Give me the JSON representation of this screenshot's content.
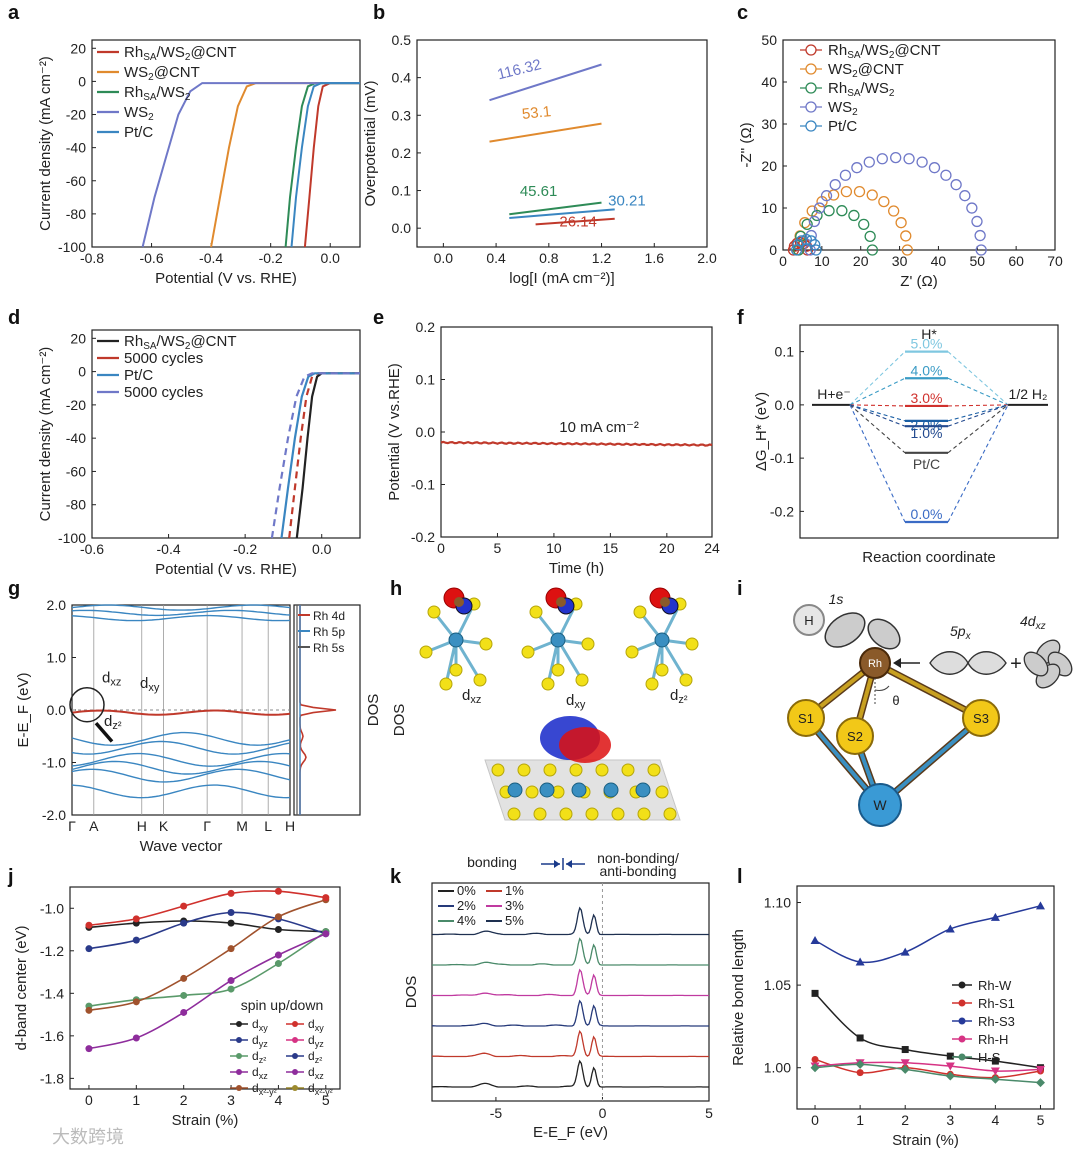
{
  "panel_letters": [
    "a",
    "b",
    "c",
    "d",
    "e",
    "f",
    "g",
    "h",
    "i",
    "j",
    "k",
    "l"
  ],
  "watermark": "大数跨境",
  "colors": {
    "rh_cnt": "#c0392b",
    "ws2_cnt": "#e08a2e",
    "rh_ws2": "#2e8b57",
    "ws2": "#6f78c8",
    "ptc": "#3a86c1",
    "black": "#222222",
    "teal": "#2d8f7b",
    "purple": "#8e2d9c",
    "pink": "#d63384",
    "brown": "#a0522d",
    "olive": "#9c8a2e",
    "navy": "#263a7a",
    "green": "#5a9a6a",
    "red": "#d0312d"
  },
  "chart_data": [
    {
      "id": "a",
      "type": "line",
      "xlabel": "Potential (V vs. RHE)",
      "ylabel": "Current density (mA cm⁻²)",
      "xlim": [
        -0.8,
        0.1
      ],
      "ylim": [
        -100,
        25
      ],
      "xticks": [
        -0.8,
        -0.6,
        -0.4,
        -0.2,
        0.0
      ],
      "xtick_labels": [
        "-0.8",
        "-0.6",
        "-0.4",
        "-0.2",
        "0.0"
      ],
      "yticks": [
        20,
        0,
        -20,
        -40,
        -60,
        -80,
        -100
      ],
      "ytick_labels": [
        "20",
        "0",
        "-20",
        "-40",
        "-60",
        "-80",
        "-100"
      ],
      "series": [
        {
          "name": "Rh_SA/WS2@CNT",
          "color": "#c0392b",
          "points": [
            [
              -0.085,
              -100
            ],
            [
              -0.07,
              -70
            ],
            [
              -0.055,
              -40
            ],
            [
              -0.04,
              -15
            ],
            [
              -0.025,
              -3
            ],
            [
              0.0,
              -1
            ],
            [
              0.1,
              -1
            ]
          ]
        },
        {
          "name": "WS2@CNT",
          "color": "#e08a2e",
          "points": [
            [
              -0.4,
              -100
            ],
            [
              -0.37,
              -70
            ],
            [
              -0.34,
              -40
            ],
            [
              -0.31,
              -15
            ],
            [
              -0.28,
              -3
            ],
            [
              -0.25,
              -1
            ],
            [
              0.1,
              -1
            ]
          ]
        },
        {
          "name": "Rh_SA/WS2",
          "color": "#2e8b57",
          "points": [
            [
              -0.15,
              -100
            ],
            [
              -0.135,
              -70
            ],
            [
              -0.115,
              -40
            ],
            [
              -0.095,
              -15
            ],
            [
              -0.075,
              -3
            ],
            [
              -0.05,
              -1
            ],
            [
              0.1,
              -1
            ]
          ]
        },
        {
          "name": "WS2",
          "color": "#6f78c8",
          "points": [
            [
              -0.63,
              -100
            ],
            [
              -0.59,
              -70
            ],
            [
              -0.55,
              -45
            ],
            [
              -0.51,
              -20
            ],
            [
              -0.47,
              -6
            ],
            [
              -0.43,
              -1
            ],
            [
              0.1,
              -1
            ]
          ]
        },
        {
          "name": "Pt/C",
          "color": "#3a86c1",
          "points": [
            [
              -0.13,
              -100
            ],
            [
              -0.115,
              -70
            ],
            [
              -0.095,
              -40
            ],
            [
              -0.075,
              -15
            ],
            [
              -0.055,
              -3
            ],
            [
              -0.03,
              -1
            ],
            [
              0.1,
              -1
            ]
          ]
        }
      ],
      "legend": [
        "Rh",
        "SA",
        "/WS",
        "2",
        "@CNT",
        "WS",
        "2",
        "@CNT",
        "Rh",
        "SA",
        "/WS",
        "2",
        "WS",
        "2",
        "Pt/C"
      ]
    },
    {
      "id": "b",
      "type": "line",
      "xlabel": "log[I (mA cm⁻²)]",
      "ylabel": "Overpotential (mV)",
      "xlim": [
        -0.2,
        2.0
      ],
      "ylim": [
        -0.05,
        0.5
      ],
      "xticks": [
        0.0,
        0.4,
        0.8,
        1.2,
        1.6,
        2.0
      ],
      "xtick_labels": [
        "0.0",
        "0.4",
        "0.8",
        "1.2",
        "1.6",
        "2.0"
      ],
      "yticks": [
        0.0,
        0.1,
        0.2,
        0.3,
        0.4,
        0.5
      ],
      "ytick_labels": [
        "0.0",
        "0.1",
        "0.2",
        "0.3",
        "0.4",
        "0.5"
      ],
      "series": [
        {
          "name": "WS2",
          "color": "#6f78c8",
          "x": [
            0.35,
            1.2
          ],
          "y": [
            0.34,
            0.435
          ],
          "label": "116.32"
        },
        {
          "name": "WS2@CNT",
          "color": "#e08a2e",
          "x": [
            0.35,
            1.2
          ],
          "y": [
            0.23,
            0.278
          ],
          "label": "53.1"
        },
        {
          "name": "Rh_SA/WS2",
          "color": "#2e8b57",
          "x": [
            0.5,
            1.2
          ],
          "y": [
            0.037,
            0.068
          ],
          "label": "45.61"
        },
        {
          "name": "Pt/C",
          "color": "#3a86c1",
          "x": [
            0.5,
            1.3
          ],
          "y": [
            0.027,
            0.05
          ],
          "label": "30.21"
        },
        {
          "name": "Rh_SA/WS2@CNT",
          "color": "#c0392b",
          "x": [
            0.7,
            1.3
          ],
          "y": [
            0.01,
            0.025
          ],
          "label": "26.14"
        }
      ]
    },
    {
      "id": "c",
      "type": "scatter",
      "xlabel": "Z' (Ω)",
      "ylabel": "-Z'' (Ω)",
      "xlim": [
        0,
        70
      ],
      "ylim": [
        0,
        50
      ],
      "xticks": [
        0,
        10,
        20,
        30,
        40,
        50,
        60,
        70
      ],
      "xtick_labels": [
        "0",
        "10",
        "20",
        "30",
        "40",
        "50",
        "60",
        "70"
      ],
      "yticks": [
        0,
        10,
        20,
        30,
        40,
        50
      ],
      "ytick_labels": [
        "0",
        "10",
        "20",
        "30",
        "40",
        "50"
      ],
      "series": [
        {
          "name": "Rh_SA/WS2@CNT",
          "color": "#c0392b",
          "center": 4.5,
          "radius": 1.8
        },
        {
          "name": "WS2@CNT",
          "color": "#e08a2e",
          "center": 18,
          "radius": 14
        },
        {
          "name": "Rh_SA/WS2",
          "color": "#2e8b57",
          "center": 13.5,
          "radius": 9.5
        },
        {
          "name": "WS2",
          "color": "#6f78c8",
          "center": 29,
          "radius": 22
        },
        {
          "name": "Pt/C",
          "color": "#3a86c1",
          "center": 6,
          "radius": 2.5
        }
      ]
    },
    {
      "id": "d",
      "type": "line",
      "xlabel": "Potential (V vs. RHE)",
      "ylabel": "Current density (mA cm⁻²)",
      "xlim": [
        -0.6,
        0.1
      ],
      "ylim": [
        -100,
        25
      ],
      "xticks": [
        -0.6,
        -0.4,
        -0.2,
        0.0
      ],
      "xtick_labels": [
        "-0.6",
        "-0.4",
        "-0.2",
        "0.0"
      ],
      "yticks": [
        20,
        0,
        -20,
        -40,
        -60,
        -80,
        -100
      ],
      "ytick_labels": [
        "20",
        "0",
        "-20",
        "-40",
        "-60",
        "-80",
        "-100"
      ],
      "series": [
        {
          "name": "Rh_SA/WS2@CNT",
          "color": "#222222",
          "dash": false,
          "points": [
            [
              -0.065,
              -100
            ],
            [
              -0.05,
              -70
            ],
            [
              -0.037,
              -40
            ],
            [
              -0.025,
              -15
            ],
            [
              -0.012,
              -3
            ],
            [
              0.0,
              -1
            ],
            [
              0.1,
              -1
            ]
          ]
        },
        {
          "name": "5000 cycles",
          "color": "#c0392b",
          "dash": true,
          "points": [
            [
              -0.085,
              -100
            ],
            [
              -0.07,
              -70
            ],
            [
              -0.055,
              -40
            ],
            [
              -0.04,
              -15
            ],
            [
              -0.025,
              -3
            ],
            [
              -0.01,
              -1
            ],
            [
              0.1,
              -1
            ]
          ]
        },
        {
          "name": "Pt/C",
          "color": "#3a86c1",
          "dash": false,
          "points": [
            [
              -0.105,
              -100
            ],
            [
              -0.088,
              -70
            ],
            [
              -0.07,
              -40
            ],
            [
              -0.052,
              -15
            ],
            [
              -0.035,
              -3
            ],
            [
              -0.018,
              -1
            ],
            [
              0.1,
              -1
            ]
          ]
        },
        {
          "name": "5000 cycles",
          "color": "#6f78c8",
          "dash": true,
          "points": [
            [
              -0.13,
              -100
            ],
            [
              -0.11,
              -70
            ],
            [
              -0.088,
              -40
            ],
            [
              -0.066,
              -15
            ],
            [
              -0.045,
              -3
            ],
            [
              -0.025,
              -1
            ],
            [
              0.1,
              -1
            ]
          ]
        }
      ]
    },
    {
      "id": "e",
      "type": "line",
      "xlabel": "Time (h)",
      "ylabel": "Potential (V vs.RHE)",
      "xlim": [
        0,
        24
      ],
      "ylim": [
        -0.2,
        0.2
      ],
      "xticks": [
        0,
        5,
        10,
        15,
        20,
        24
      ],
      "xtick_labels": [
        "0",
        "5",
        "10",
        "15",
        "20",
        "24"
      ],
      "yticks": [
        0.2,
        0.1,
        0.0,
        -0.1,
        -0.2
      ],
      "ytick_labels": [
        "0.2",
        "0.1",
        "0.0",
        "-0.1",
        "-0.2"
      ],
      "series": [
        {
          "name": "10 mA cm⁻²",
          "color": "#c0392b",
          "x": [
            0,
            24
          ],
          "y": [
            -0.02,
            -0.025
          ]
        }
      ],
      "annotation": "10 mA cm⁻²"
    },
    {
      "id": "f",
      "type": "energy_diagram",
      "xlabel": "Reaction coordinate",
      "ylabel": "ΔG_H* (eV)",
      "ylim": [
        -0.25,
        0.15
      ],
      "yticks": [
        0.1,
        0.0,
        -0.1,
        -0.2
      ],
      "ytick_labels": [
        "0.1",
        "0.0",
        "-0.1",
        "-0.2"
      ],
      "left_label": "H+e⁻",
      "right_label": "1/2 H₂",
      "top_label": "H*",
      "levels": [
        {
          "label": "5.0%",
          "value": 0.1,
          "color": "#7fc7e0"
        },
        {
          "label": "4.0%",
          "value": 0.05,
          "color": "#3a9bc5"
        },
        {
          "label": "3.0%",
          "value": -0.002,
          "color": "#d0312d"
        },
        {
          "label": "2.0%",
          "value": -0.03,
          "color": "#1a5fa5"
        },
        {
          "label": "1.0%",
          "value": -0.04,
          "color": "#234a8f"
        },
        {
          "label": "Pt/C",
          "value": -0.09,
          "color": "#444444"
        },
        {
          "label": "0.0%",
          "value": -0.22,
          "color": "#3a6bc5"
        }
      ]
    },
    {
      "id": "g",
      "type": "band_structure",
      "xlabel": "Wave vector",
      "ylabel": "E-E_F (eV)",
      "ylim": [
        -2.0,
        2.0
      ],
      "yticks": [
        2.0,
        1.0,
        0.0,
        -1.0,
        -2.0
      ],
      "ytick_labels": [
        "2.0",
        "1.0",
        "0.0",
        "-1.0",
        "-2.0"
      ],
      "kpoints": [
        "Γ",
        "A",
        "H",
        "K",
        "Γ",
        "M",
        "L",
        "H"
      ],
      "orbital_labels": [
        "d",
        "xz",
        "d",
        "xy",
        "d",
        "z²"
      ],
      "dos_legend": [
        "Rh 4d",
        "Rh 5p",
        "Rh 5s"
      ],
      "dos_label": "DOS"
    },
    {
      "id": "j",
      "type": "line",
      "xlabel": "Strain (%)",
      "ylabel": "d-band center (eV)",
      "xlim": [
        -0.4,
        5.3
      ],
      "ylim": [
        -1.85,
        -0.9
      ],
      "xticks": [
        0,
        1,
        2,
        3,
        4,
        5
      ],
      "xtick_labels": [
        "0",
        "1",
        "2",
        "3",
        "4",
        "5"
      ],
      "yticks": [
        -1.0,
        -1.2,
        -1.4,
        -1.6,
        -1.8
      ],
      "ytick_labels": [
        "-1.0",
        "-1.2",
        "-1.4",
        "-1.6",
        "-1.8"
      ],
      "x": [
        0,
        1,
        2,
        3,
        4,
        5
      ],
      "series": [
        {
          "name": "d_xy",
          "color": "#222222",
          "values": [
            -1.09,
            -1.07,
            -1.06,
            -1.07,
            -1.1,
            -1.11
          ]
        },
        {
          "name": "d_yz",
          "color": "#2a3a8a",
          "values": [
            -1.19,
            -1.15,
            -1.07,
            -1.02,
            -1.05,
            -1.12
          ]
        },
        {
          "name": "d_z²",
          "color": "#5a9a6a",
          "values": [
            -1.46,
            -1.43,
            -1.41,
            -1.38,
            -1.26,
            -1.11
          ]
        },
        {
          "name": "d_xz",
          "color": "#8e2d9c",
          "values": [
            -1.66,
            -1.61,
            -1.49,
            -1.34,
            -1.22,
            -1.12
          ]
        },
        {
          "name": "d_x²-y²",
          "color": "#a0522d",
          "values": [
            -1.48,
            -1.44,
            -1.33,
            -1.19,
            -1.04,
            -0.96
          ]
        },
        {
          "name": "d_xy(dn)",
          "color": "#d0312d",
          "values": [
            -1.08,
            -1.05,
            -0.99,
            -0.93,
            -0.92,
            -0.95
          ]
        }
      ],
      "legend_title": "spin up/down",
      "legend_entries": [
        "d",
        "xy",
        "d",
        "xy",
        "d",
        "yz",
        "d",
        "yz",
        "d",
        "z²",
        "d",
        "z²",
        "d",
        "xz",
        "d",
        "xz",
        "d",
        "x²-y²",
        "d",
        "x²-y²"
      ]
    },
    {
      "id": "k",
      "type": "line",
      "xlabel": "E-E_F (eV)",
      "ylabel": "DOS",
      "xlim": [
        -8,
        5
      ],
      "xticks": [
        -5,
        0,
        5
      ],
      "xtick_labels": [
        "-5",
        "0",
        "5"
      ],
      "series": [
        {
          "name": "0%",
          "color": "#222222"
        },
        {
          "name": "1%",
          "color": "#c0392b"
        },
        {
          "name": "2%",
          "color": "#263a7a"
        },
        {
          "name": "3%",
          "color": "#c03aa0"
        },
        {
          "name": "4%",
          "color": "#4a8a6a"
        },
        {
          "name": "5%",
          "color": "#1e3050"
        }
      ],
      "annotations": [
        "bonding",
        "non-bonding/",
        "anti-bonding"
      ]
    },
    {
      "id": "l",
      "type": "line",
      "xlabel": "Strain (%)",
      "ylabel": "Relative bond length",
      "xlim": [
        -0.4,
        5.3
      ],
      "ylim": [
        0.975,
        1.11
      ],
      "xticks": [
        0,
        1,
        2,
        3,
        4,
        5
      ],
      "xtick_labels": [
        "0",
        "1",
        "2",
        "3",
        "4",
        "5"
      ],
      "yticks": [
        1.1,
        1.05,
        1.0
      ],
      "ytick_labels": [
        "1.10",
        "1.05",
        "1.00"
      ],
      "x": [
        0,
        1,
        2,
        3,
        4,
        5
      ],
      "series": [
        {
          "name": "Rh-W",
          "color": "#222222",
          "marker": "square",
          "values": [
            1.045,
            1.018,
            1.011,
            1.007,
            1.004,
            1.0
          ]
        },
        {
          "name": "Rh-S1",
          "color": "#d0312d",
          "marker": "circle",
          "values": [
            1.005,
            0.997,
            1.0,
            0.996,
            0.994,
            0.998
          ]
        },
        {
          "name": "Rh-S3",
          "color": "#263a9a",
          "marker": "triangle",
          "values": [
            1.077,
            1.064,
            1.07,
            1.084,
            1.091,
            1.098
          ]
        },
        {
          "name": "Rh-H",
          "color": "#d63384",
          "marker": "tri-down",
          "values": [
            1.001,
            1.003,
            1.003,
            1.001,
            0.998,
            0.999
          ]
        },
        {
          "name": "H-S",
          "color": "#4a8a6a",
          "marker": "diamond",
          "values": [
            1.0,
            1.002,
            0.999,
            0.995,
            0.993,
            0.991
          ]
        }
      ]
    }
  ],
  "panel_h": {
    "labels": [
      "d",
      "xz",
      "d",
      "xy",
      "d",
      "z²"
    ],
    "dos_label": "DOS"
  },
  "panel_i": {
    "labels": [
      "H",
      "Rh",
      "S1",
      "S2",
      "S3",
      "W",
      "1s",
      "5p",
      "x",
      "4d",
      "xz",
      "θ",
      "+"
    ]
  }
}
